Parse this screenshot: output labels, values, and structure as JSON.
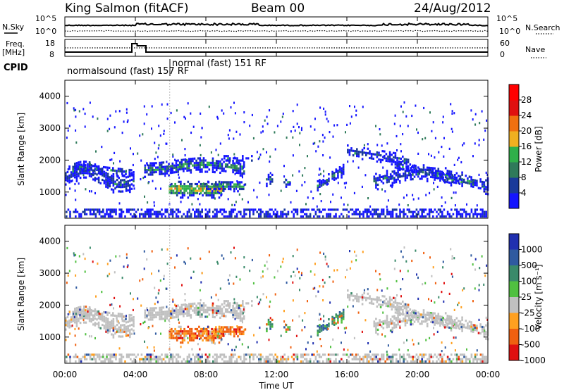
{
  "header": {
    "station": "King Salmon (fitACF)",
    "beam": "Beam 00",
    "date": "24/Aug/2012"
  },
  "summary_panel": {
    "left_labels": {
      "nsky": "N.Sky",
      "freq_line1": "Freq.",
      "freq_line2": "[MHz]",
      "cpid": "CPID"
    },
    "right_labels": {
      "nsearch": "N.Search",
      "nave": "Nave"
    },
    "noise_ticks_left": [
      "10^5",
      "10^0"
    ],
    "noise_ticks_right": [
      "10^5",
      "10^0"
    ],
    "freq_ticks": [
      "18",
      "8"
    ],
    "nave_ticks": [
      "60",
      "0"
    ],
    "cpid_labels": [
      {
        "text": "normalsound (fast) 157 RF",
        "start_hour": 0.0
      },
      {
        "text": "normal (fast) 151 RF",
        "start_hour": 6.0
      }
    ]
  },
  "chart_data": [
    {
      "type": "heatmap",
      "panel": "power",
      "ylabel": "Slant Range [km]",
      "yticks": [
        "1000",
        "2000",
        "3000",
        "4000"
      ],
      "ylim": [
        180,
        4500
      ],
      "xlim": [
        0,
        24
      ],
      "colorbar_label": "Power [dB]",
      "colorbar_ticks": [
        "4",
        "8",
        "12",
        "16",
        "20",
        "24",
        "28"
      ],
      "colors": [
        "#1515ff",
        "#1a3a9a",
        "#2f7a5a",
        "#2fb04a",
        "#f0b020",
        "#f07010",
        "#e01010",
        "#ff0000"
      ]
    },
    {
      "type": "heatmap",
      "panel": "velocity",
      "ylabel": "Slant Range [km]",
      "yticks": [
        "1000",
        "2000",
        "3000",
        "4000"
      ],
      "ylim": [
        180,
        4500
      ],
      "xlim": [
        0,
        24
      ],
      "colorbar_label": "Velocity [m s⁻¹]",
      "colorbar_ticks": [
        "1000",
        "500",
        "100",
        "25",
        "-25",
        "-100",
        "-500",
        "-1000"
      ],
      "colors": [
        "#2030b0",
        "#2f5aa0",
        "#3a8a6a",
        "#50c040",
        "#c0c0c0",
        "#ffa020",
        "#f06010",
        "#e01010"
      ]
    }
  ],
  "x_axis": {
    "ticks": [
      "00:00",
      "04:00",
      "08:00",
      "12:00",
      "16:00",
      "20:00",
      "00:00"
    ],
    "label": "Time UT"
  },
  "vertical_marker_hour": 5.95
}
